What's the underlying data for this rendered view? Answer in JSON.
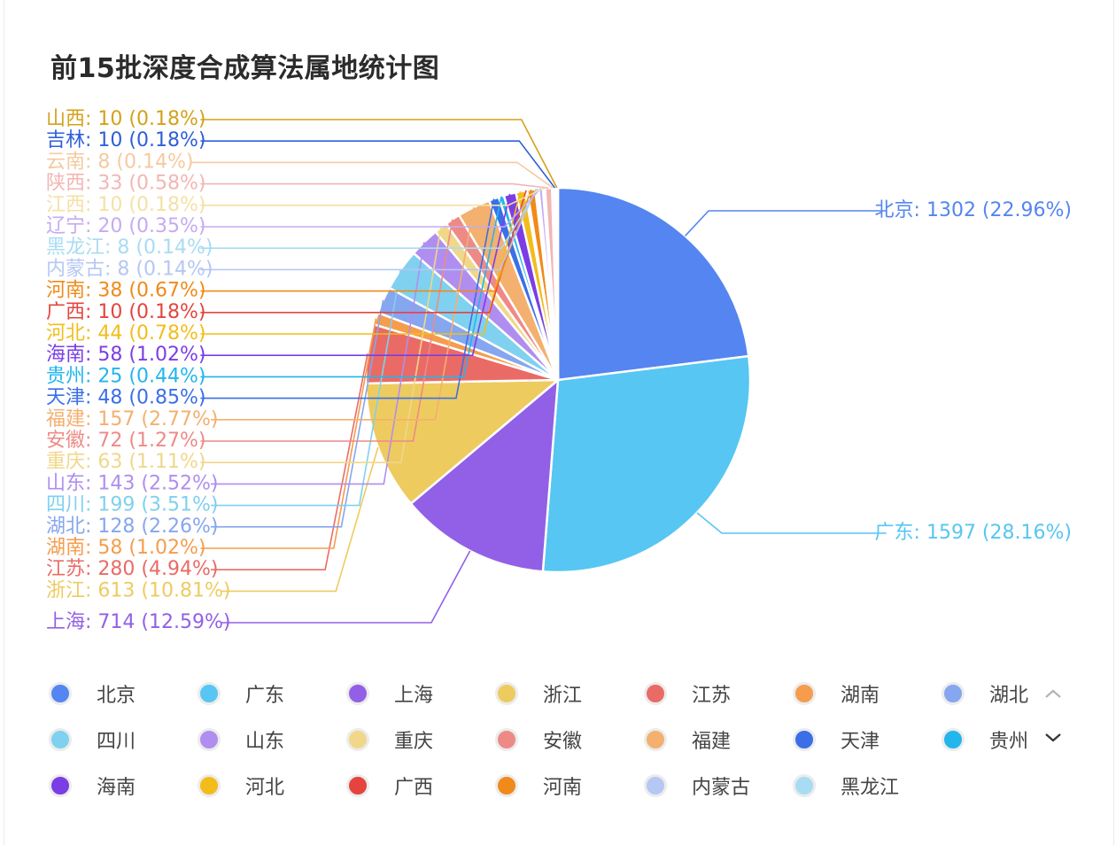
{
  "chart_data": {
    "type": "pie",
    "title": "前15批深度合成算法属地统计图",
    "slices": [
      {
        "name": "北京",
        "value": 1302,
        "percent": "22.96%",
        "color": "#5585f0"
      },
      {
        "name": "广东",
        "value": 1597,
        "percent": "28.16%",
        "color": "#57c6f2"
      },
      {
        "name": "上海",
        "value": 714,
        "percent": "12.59%",
        "color": "#9260e6"
      },
      {
        "name": "浙江",
        "value": 613,
        "percent": "10.81%",
        "color": "#eecb5f"
      },
      {
        "name": "江苏",
        "value": 280,
        "percent": "4.94%",
        "color": "#ea6b66"
      },
      {
        "name": "湖南",
        "value": 58,
        "percent": "1.02%",
        "color": "#f59d4c"
      },
      {
        "name": "湖北",
        "value": 128,
        "percent": "2.26%",
        "color": "#86a6ef"
      },
      {
        "name": "四川",
        "value": 199,
        "percent": "3.51%",
        "color": "#7fd1ef"
      },
      {
        "name": "山东",
        "value": 143,
        "percent": "2.52%",
        "color": "#b08ef0"
      },
      {
        "name": "重庆",
        "value": 63,
        "percent": "1.11%",
        "color": "#f0d78a"
      },
      {
        "name": "安徽",
        "value": 72,
        "percent": "1.27%",
        "color": "#ee8a86"
      },
      {
        "name": "福建",
        "value": 157,
        "percent": "2.77%",
        "color": "#f3b06e"
      },
      {
        "name": "天津",
        "value": 48,
        "percent": "0.85%",
        "color": "#3b6fe8"
      },
      {
        "name": "贵州",
        "value": 25,
        "percent": "0.44%",
        "color": "#22b6ec"
      },
      {
        "name": "海南",
        "value": 58,
        "percent": "1.02%",
        "color": "#7b3ee5"
      },
      {
        "name": "河北",
        "value": 44,
        "percent": "0.78%",
        "color": "#f2bd1b"
      },
      {
        "name": "广西",
        "value": 10,
        "percent": "0.18%",
        "color": "#e5443e"
      },
      {
        "name": "河南",
        "value": 38,
        "percent": "0.67%",
        "color": "#f08a1a"
      },
      {
        "name": "内蒙古",
        "value": 8,
        "percent": "0.14%",
        "color": "#b5c7f3"
      },
      {
        "name": "黑龙江",
        "value": 8,
        "percent": "0.14%",
        "color": "#a8dcf3"
      },
      {
        "name": "辽宁",
        "value": 20,
        "percent": "0.35%",
        "color": "#c5abf3"
      },
      {
        "name": "江西",
        "value": 10,
        "percent": "0.18%",
        "color": "#f3e1a6"
      },
      {
        "name": "陕西",
        "value": 33,
        "percent": "0.58%",
        "color": "#f3b6b3"
      },
      {
        "name": "云南",
        "value": 8,
        "percent": "0.14%",
        "color": "#f5caa0"
      },
      {
        "name": "吉林",
        "value": 10,
        "percent": "0.18%",
        "color": "#2f5fd8"
      },
      {
        "name": "山西",
        "value": 10,
        "percent": "0.18%",
        "color": "#d4a11a"
      }
    ]
  },
  "legend": {
    "items": [
      "北京",
      "广东",
      "上海",
      "浙江",
      "江苏",
      "湖南",
      "湖北",
      "四川",
      "山东",
      "重庆",
      "安徽",
      "福建",
      "天津",
      "贵州",
      "海南",
      "河北",
      "广西",
      "河南",
      "内蒙古",
      "黑龙江"
    ],
    "up_icon": "chevron-up-icon",
    "down_icon": "chevron-down-icon"
  }
}
